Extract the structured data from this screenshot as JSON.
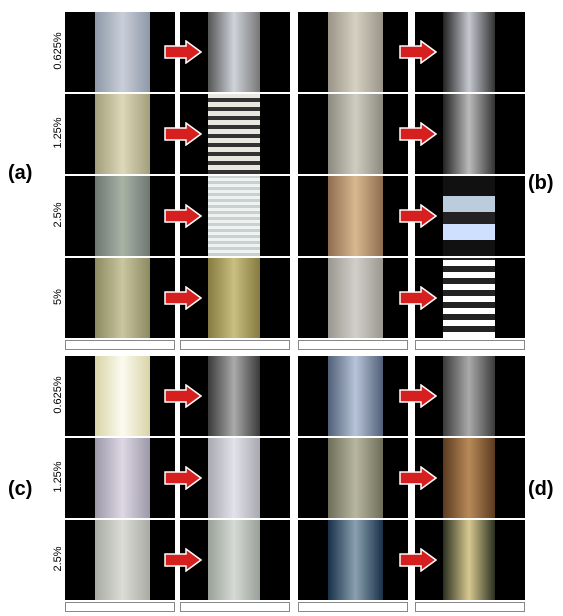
{
  "panels": [
    "(a)",
    "(b)",
    "(c)",
    "(d)"
  ],
  "top_rows": [
    "0.625%",
    "1.25%",
    "2.5%",
    "5%"
  ],
  "bottom_rows": [
    "0.625%",
    "1.25%",
    "2.5%"
  ]
}
